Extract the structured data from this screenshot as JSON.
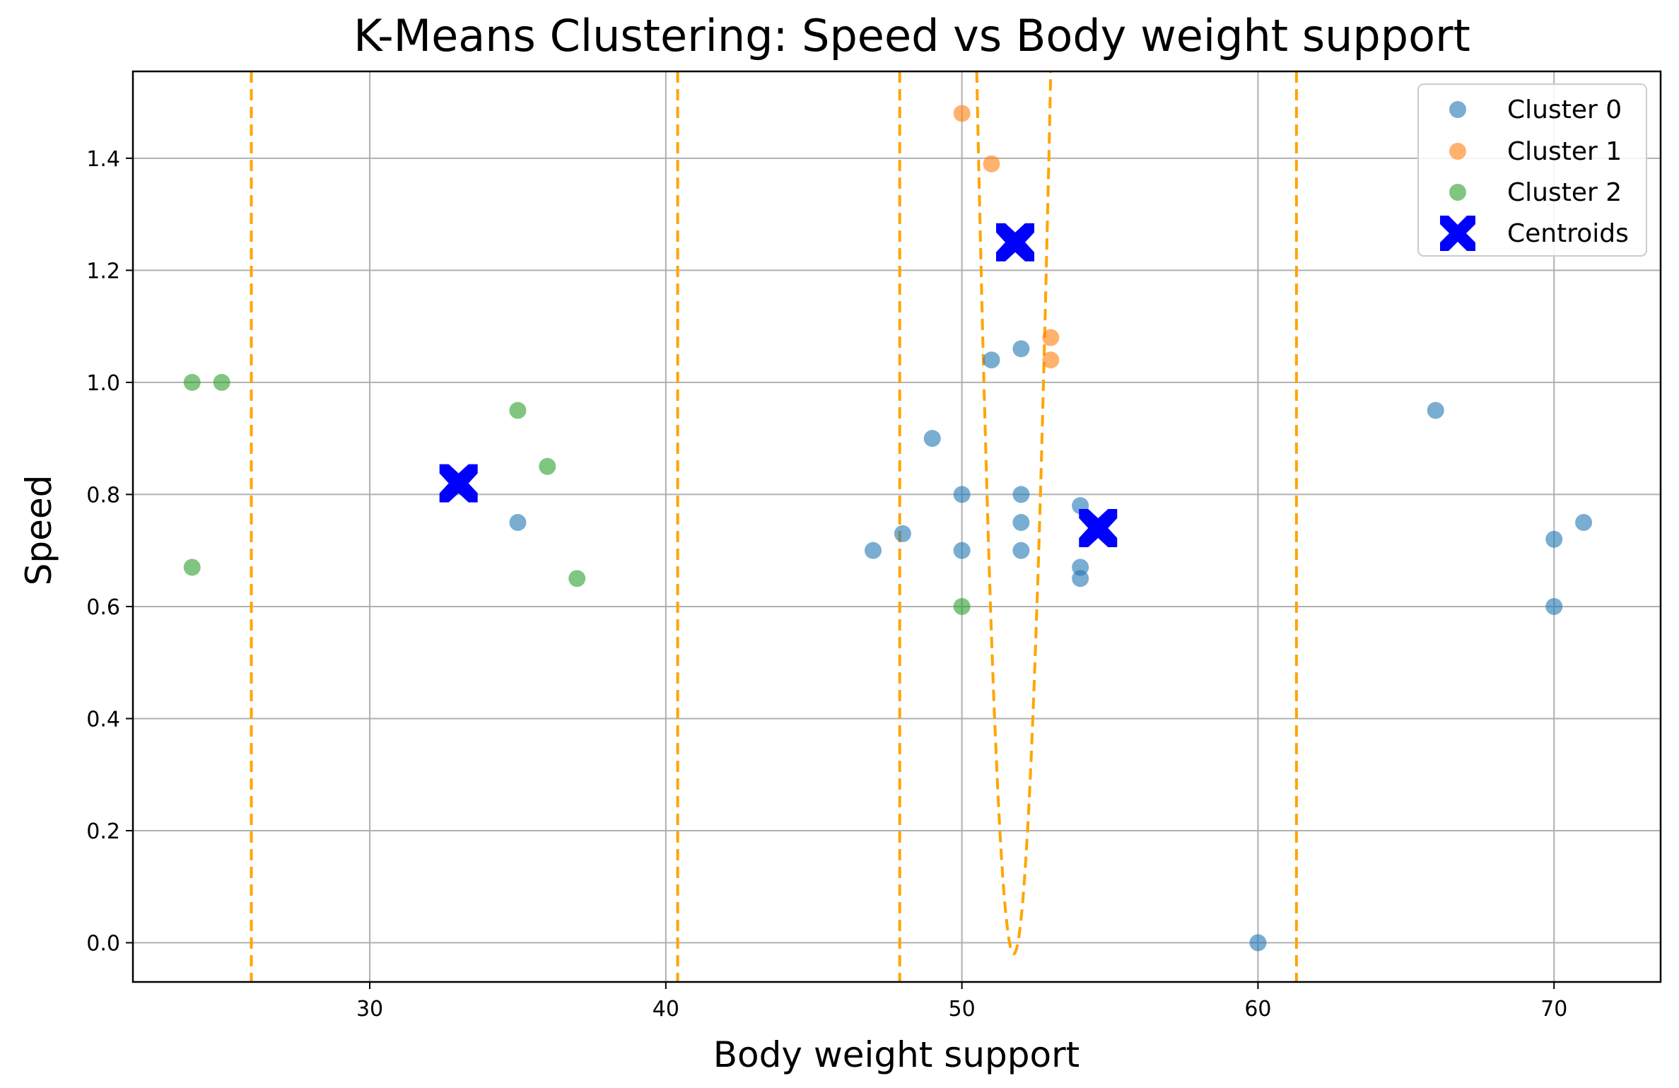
{
  "chart_data": {
    "type": "scatter",
    "title": "K-Means Clustering: Speed vs Body weight support",
    "xlabel": "Body weight support",
    "ylabel": "Speed",
    "xlim": [
      22,
      73.6
    ],
    "ylim": [
      -0.07,
      1.555
    ],
    "xticks": [
      30,
      40,
      50,
      60,
      70
    ],
    "yticks": [
      0.0,
      0.2,
      0.4,
      0.6,
      0.8,
      1.0,
      1.2,
      1.4
    ],
    "grid": true,
    "legend_position": "top-right",
    "colors": {
      "cluster0": "#1f77b4",
      "cluster1": "#ff7f0e",
      "cluster2": "#2ca02c",
      "centroid": "#0000ff",
      "boundary": "#ffa500"
    },
    "series": [
      {
        "name": "Cluster 0",
        "color": "#1f77b4",
        "points": [
          [
            35,
            0.75
          ],
          [
            47,
            0.7
          ],
          [
            48,
            0.73
          ],
          [
            49,
            0.9
          ],
          [
            50,
            0.8
          ],
          [
            50,
            0.7
          ],
          [
            51,
            1.04
          ],
          [
            52,
            1.06
          ],
          [
            52,
            0.8
          ],
          [
            52,
            0.75
          ],
          [
            52,
            0.7
          ],
          [
            54,
            0.78
          ],
          [
            54,
            0.67
          ],
          [
            54,
            0.65
          ],
          [
            60,
            0.0
          ],
          [
            66,
            0.95
          ],
          [
            70,
            0.72
          ],
          [
            70,
            0.6
          ],
          [
            71,
            0.75
          ]
        ]
      },
      {
        "name": "Cluster 1",
        "color": "#ff7f0e",
        "points": [
          [
            50,
            1.48
          ],
          [
            51,
            1.39
          ],
          [
            53,
            1.08
          ],
          [
            53,
            1.04
          ]
        ]
      },
      {
        "name": "Cluster 2",
        "color": "#2ca02c",
        "points": [
          [
            24,
            1.0
          ],
          [
            25,
            1.0
          ],
          [
            24,
            0.67
          ],
          [
            35,
            0.95
          ],
          [
            36,
            0.85
          ],
          [
            37,
            0.65
          ],
          [
            50,
            0.6
          ]
        ]
      }
    ],
    "centroids": {
      "name": "Centroids",
      "color": "#0000ff",
      "points": [
        [
          33.0,
          0.82
        ],
        [
          51.8,
          1.25
        ],
        [
          54.6,
          0.74
        ]
      ]
    },
    "boundaries": {
      "vertical_x": [
        26.0,
        40.4,
        47.9,
        61.3
      ],
      "parabola": {
        "vertex_x": 51.75,
        "vertex_y": -0.02,
        "left_x": 50.5,
        "right_x": 53.0,
        "top_y": 1.555
      }
    },
    "legend": [
      "Cluster 0",
      "Cluster 1",
      "Cluster 2",
      "Centroids"
    ]
  }
}
